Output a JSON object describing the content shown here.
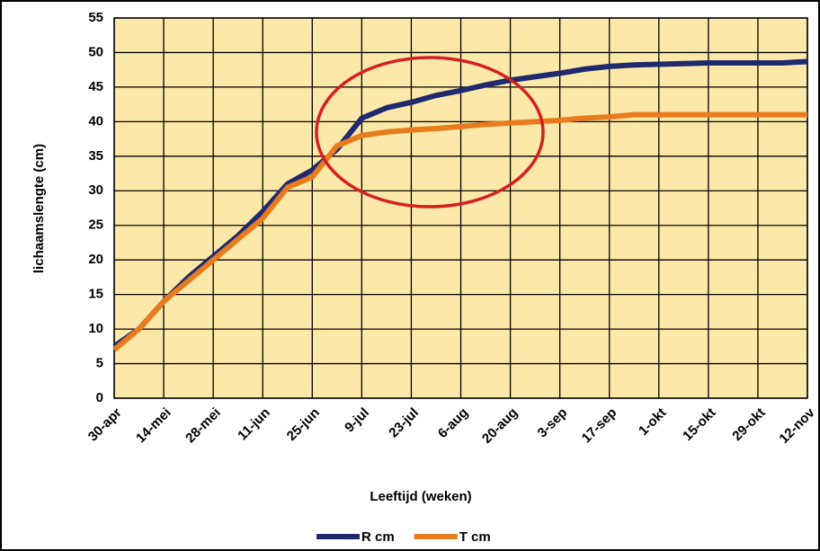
{
  "chart_data": {
    "type": "line",
    "x_label": "Leeftijd (weken)",
    "y_label": "lichaamslengte (cm)",
    "categories": [
      "30-apr",
      null,
      "14-mei",
      null,
      "28-mei",
      null,
      "11-jun",
      null,
      "25-jun",
      null,
      "9-jul",
      null,
      "23-jul",
      null,
      "6-aug",
      null,
      "20-aug",
      null,
      "3-sep",
      null,
      "17-sep",
      null,
      "1-okt",
      null,
      "15-okt",
      null,
      "29-okt",
      null,
      "12-nov"
    ],
    "series": [
      {
        "name": "R cm",
        "color": "#1f2a6e",
        "values": [
          7.5,
          10,
          14,
          17.5,
          20.5,
          23.5,
          27,
          31,
          33,
          36,
          40.5,
          42,
          42.8,
          43.8,
          44.5,
          45.3,
          46,
          46.5,
          47,
          47.6,
          48,
          48.2,
          48.3,
          48.4,
          48.5,
          48.5,
          48.5,
          48.5,
          48.7
        ]
      },
      {
        "name": "T cm",
        "color": "#e87b1e",
        "values": [
          7,
          10,
          14,
          17,
          20,
          23,
          26,
          30.5,
          32,
          36.5,
          38,
          38.5,
          38.8,
          39,
          39.3,
          39.6,
          39.8,
          40,
          40.2,
          40.5,
          40.7,
          41,
          41,
          41,
          41,
          41,
          41,
          41,
          41
        ]
      }
    ],
    "ylim": [
      0,
      55
    ],
    "yticks": [
      0,
      5,
      10,
      15,
      20,
      25,
      30,
      35,
      40,
      45,
      50,
      55
    ],
    "grid": true,
    "legend": "bottom",
    "plot_background": "#fce8a8"
  }
}
